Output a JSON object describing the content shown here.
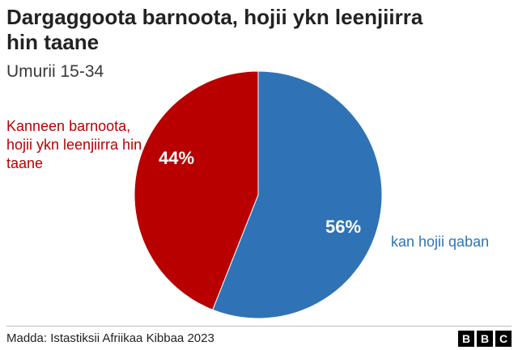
{
  "title": "Dargaggoota barnoota, hojii ykn leenjiirra hin taane",
  "subtitle": "Umurii 15-34",
  "source": "Madda: Istastiksii Afriikaa Kibbaa 2023",
  "logo": [
    "B",
    "B",
    "C"
  ],
  "colors": {
    "red": "#b80000",
    "blue": "#2f73b6"
  },
  "chart_data": {
    "type": "pie",
    "title": "Dargaggoota barnoota, hojii ykn leenjiirra hin taane",
    "subtitle": "Umurii 15-34",
    "slices": [
      {
        "label": "kan hojii qaban",
        "value": 56,
        "display": "56%",
        "color": "#2f73b6"
      },
      {
        "label": "Kanneen barnoota, hojii ykn leenjiirra hin taane",
        "value": 44,
        "display": "44%",
        "color": "#b80000"
      }
    ]
  }
}
